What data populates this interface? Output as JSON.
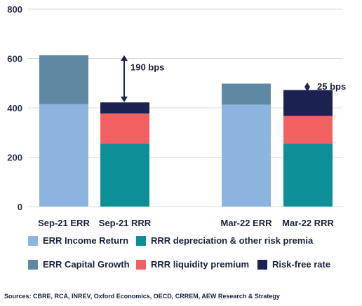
{
  "chart_data": {
    "type": "stacked-bar",
    "ylim": [
      0,
      800
    ],
    "yticks": [
      0,
      200,
      400,
      600,
      800
    ],
    "grid": true,
    "legend_placement": "bottom",
    "categories": [
      "Sep-21 ERR",
      "Sep-21 RRR",
      "Mar-22 ERR",
      "Mar-22 RRR"
    ],
    "series": [
      {
        "name": "ERR Income Return",
        "color": "#8db3df",
        "values": [
          415,
          0,
          413,
          0
        ]
      },
      {
        "name": "ERR Capital Growth",
        "color": "#5f89a3",
        "values": [
          198,
          0,
          85,
          0
        ]
      },
      {
        "name": "RRR depreciation & other risk premia",
        "color": "#0c8f96",
        "values": [
          0,
          255,
          0,
          255
        ]
      },
      {
        "name": "RRR liquidity premium",
        "color": "#f26161",
        "values": [
          0,
          122,
          0,
          112
        ]
      },
      {
        "name": "Risk-free rate",
        "color": "#1b2150",
        "values": [
          0,
          45,
          0,
          105
        ]
      }
    ],
    "annotations": [
      {
        "text": "190 bps",
        "from": 423,
        "to": 613,
        "category": "Sep-21 RRR"
      },
      {
        "text": "25 bps",
        "from": 472,
        "to": 497,
        "category": "Mar-22 RRR"
      }
    ]
  },
  "legend": [
    {
      "label": "ERR Income Return",
      "color": "#8db3df"
    },
    {
      "label": "RRR depreciation & other risk premia",
      "color": "#0c8f96"
    },
    {
      "label": "ERR Capital Growth",
      "color": "#5f89a3"
    },
    {
      "label": "RRR liquidity premium",
      "color": "#f26161"
    },
    {
      "label": "Risk-free rate",
      "color": "#1b2150"
    }
  ],
  "source": "Sources: CBRE, RCA, INREV, Oxford Economics, OECD, CRREM, AEW Research & Strategy"
}
